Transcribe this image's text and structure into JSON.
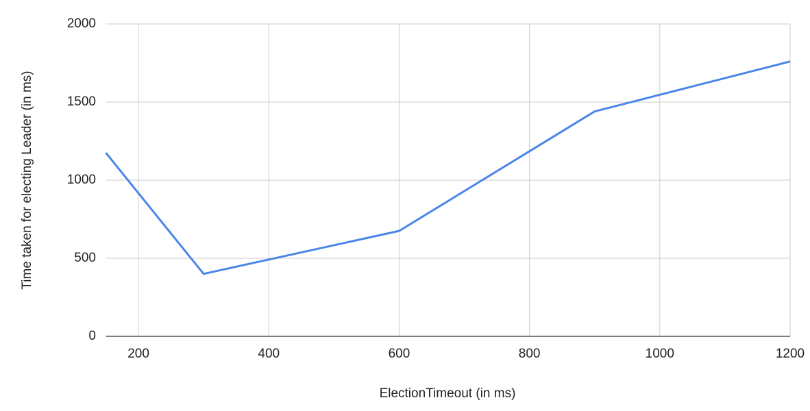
{
  "chart_data": {
    "type": "line",
    "x_label": "ElectionTimeout (in ms)",
    "y_label": "Time taken for electing Leader (in ms)",
    "x": [
      150,
      300,
      600,
      900,
      1200
    ],
    "series": [
      {
        "color": "#4a86e8",
        "values": [
          1175,
          400,
          675,
          1440,
          1760
        ]
      }
    ],
    "xlim": [
      150,
      1200
    ],
    "xticks": [
      200,
      400,
      600,
      800,
      1000,
      1200
    ],
    "ylim": [
      0,
      2000
    ],
    "yticks": [
      0,
      500,
      1000,
      1500,
      2000
    ],
    "grid": true
  }
}
